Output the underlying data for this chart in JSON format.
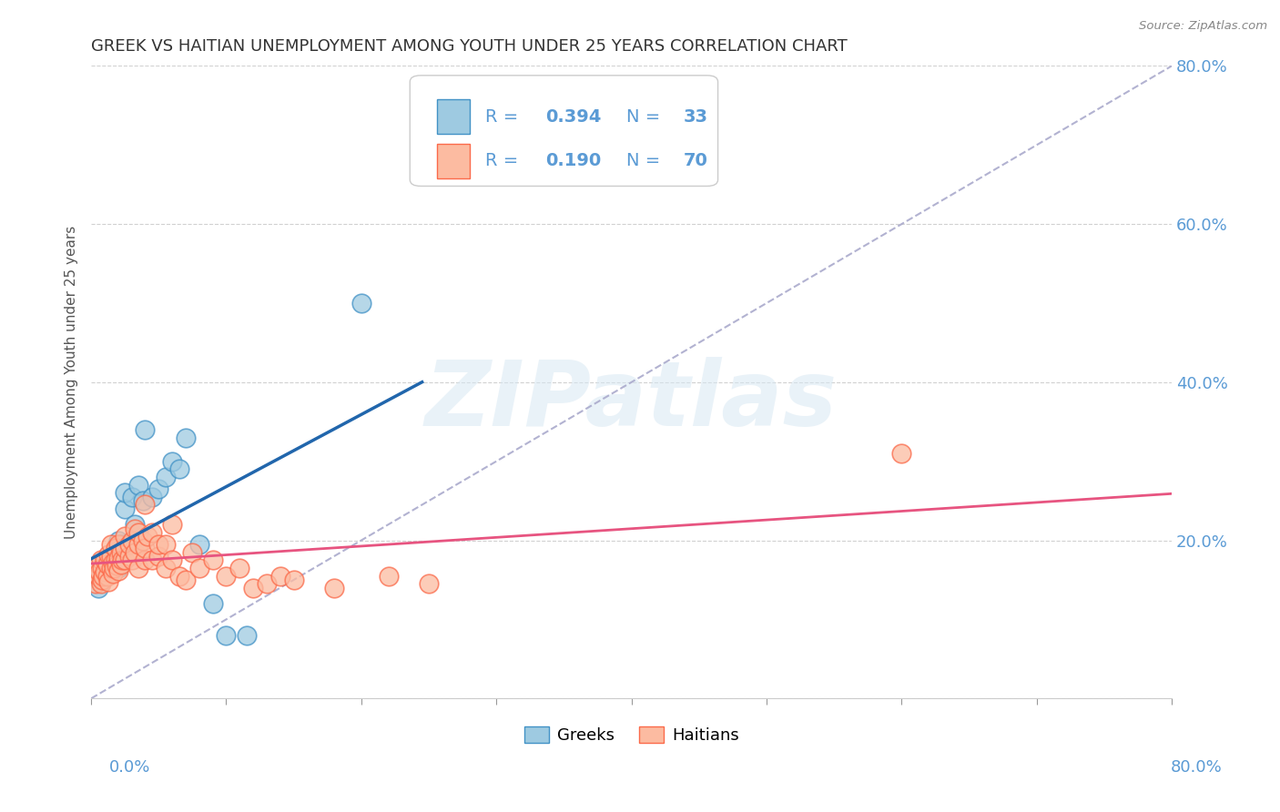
{
  "title": "GREEK VS HAITIAN UNEMPLOYMENT AMONG YOUTH UNDER 25 YEARS CORRELATION CHART",
  "source": "Source: ZipAtlas.com",
  "ylabel": "Unemployment Among Youth under 25 years",
  "xlim": [
    0.0,
    0.8
  ],
  "ylim": [
    0.0,
    0.8
  ],
  "greek_R": 0.394,
  "greek_N": 33,
  "haitian_R": 0.19,
  "haitian_N": 70,
  "greeks_x": [
    0.005,
    0.005,
    0.008,
    0.008,
    0.008,
    0.01,
    0.01,
    0.012,
    0.015,
    0.015,
    0.018,
    0.018,
    0.02,
    0.02,
    0.022,
    0.025,
    0.025,
    0.03,
    0.032,
    0.035,
    0.038,
    0.04,
    0.045,
    0.05,
    0.055,
    0.06,
    0.065,
    0.07,
    0.08,
    0.09,
    0.1,
    0.115,
    0.2
  ],
  "greeks_y": [
    0.14,
    0.155,
    0.15,
    0.16,
    0.17,
    0.155,
    0.165,
    0.175,
    0.16,
    0.18,
    0.175,
    0.185,
    0.165,
    0.2,
    0.195,
    0.24,
    0.26,
    0.255,
    0.22,
    0.27,
    0.25,
    0.34,
    0.255,
    0.265,
    0.28,
    0.3,
    0.29,
    0.33,
    0.195,
    0.12,
    0.08,
    0.08,
    0.5
  ],
  "haitians_x": [
    0.003,
    0.005,
    0.005,
    0.006,
    0.007,
    0.007,
    0.008,
    0.008,
    0.009,
    0.01,
    0.01,
    0.012,
    0.012,
    0.013,
    0.013,
    0.015,
    0.015,
    0.015,
    0.016,
    0.016,
    0.017,
    0.018,
    0.018,
    0.019,
    0.02,
    0.02,
    0.02,
    0.022,
    0.022,
    0.023,
    0.025,
    0.025,
    0.025,
    0.028,
    0.028,
    0.03,
    0.03,
    0.032,
    0.032,
    0.035,
    0.035,
    0.035,
    0.038,
    0.04,
    0.04,
    0.04,
    0.042,
    0.045,
    0.045,
    0.05,
    0.05,
    0.055,
    0.055,
    0.06,
    0.06,
    0.065,
    0.07,
    0.075,
    0.08,
    0.09,
    0.1,
    0.11,
    0.12,
    0.13,
    0.14,
    0.15,
    0.18,
    0.22,
    0.25,
    0.6
  ],
  "haitians_y": [
    0.145,
    0.155,
    0.17,
    0.16,
    0.145,
    0.175,
    0.15,
    0.165,
    0.155,
    0.16,
    0.175,
    0.155,
    0.17,
    0.148,
    0.182,
    0.165,
    0.18,
    0.195,
    0.158,
    0.172,
    0.165,
    0.175,
    0.19,
    0.168,
    0.162,
    0.178,
    0.195,
    0.17,
    0.185,
    0.175,
    0.175,
    0.19,
    0.205,
    0.18,
    0.195,
    0.2,
    0.175,
    0.185,
    0.215,
    0.195,
    0.165,
    0.21,
    0.2,
    0.175,
    0.19,
    0.245,
    0.205,
    0.175,
    0.21,
    0.18,
    0.195,
    0.165,
    0.195,
    0.175,
    0.22,
    0.155,
    0.15,
    0.185,
    0.165,
    0.175,
    0.155,
    0.165,
    0.14,
    0.145,
    0.155,
    0.15,
    0.14,
    0.155,
    0.145,
    0.31
  ],
  "greek_color": "#9ECAE1",
  "greek_edge_color": "#4292C6",
  "haitian_color": "#FCBBA1",
  "haitian_edge_color": "#FB6A4A",
  "greek_line_color": "#2166AC",
  "haitian_line_color": "#E75480",
  "diagonal_color": "#AAAACC",
  "watermark_text": "ZIPatlas",
  "background_color": "#FFFFFF",
  "title_color": "#333333",
  "title_fontsize": 13,
  "tick_color": "#5B9BD5",
  "legend_text_color": "#5B9BD5",
  "legend_value_color": "#5B9BD5"
}
